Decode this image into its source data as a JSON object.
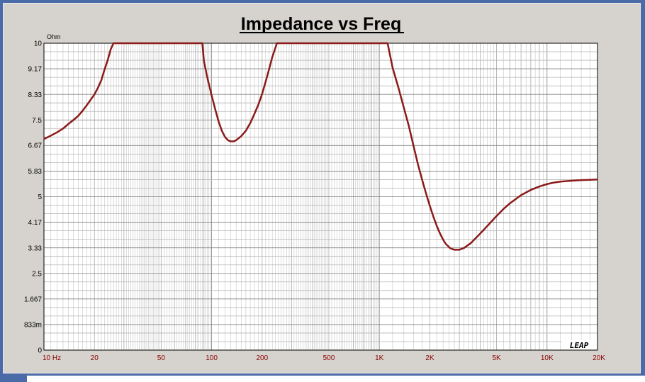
{
  "chart_data": {
    "type": "line",
    "title": "Impedance vs Freq",
    "ylabel": "Ohm",
    "xscale": "log",
    "xlim": [
      10,
      20000
    ],
    "ylim": [
      0,
      10
    ],
    "grid": true,
    "x_ticks": [
      {
        "value": 10,
        "label": "10  Hz"
      },
      {
        "value": 20,
        "label": "20"
      },
      {
        "value": 50,
        "label": "50"
      },
      {
        "value": 100,
        "label": "100"
      },
      {
        "value": 200,
        "label": "200"
      },
      {
        "value": 500,
        "label": "500"
      },
      {
        "value": 1000,
        "label": "1K"
      },
      {
        "value": 2000,
        "label": "2K"
      },
      {
        "value": 5000,
        "label": "5K"
      },
      {
        "value": 10000,
        "label": "10K"
      },
      {
        "value": 20000,
        "label": "20K"
      }
    ],
    "y_ticks": [
      {
        "value": 10,
        "label": "10"
      },
      {
        "value": 9.17,
        "label": "9.17"
      },
      {
        "value": 8.33,
        "label": "8.33"
      },
      {
        "value": 7.5,
        "label": "7.5"
      },
      {
        "value": 6.67,
        "label": "6.67"
      },
      {
        "value": 5.83,
        "label": "5.83"
      },
      {
        "value": 5,
        "label": "5"
      },
      {
        "value": 4.17,
        "label": "4.17"
      },
      {
        "value": 3.33,
        "label": "3.33"
      },
      {
        "value": 2.5,
        "label": "2.5"
      },
      {
        "value": 1.667,
        "label": "1.667"
      },
      {
        "value": 0.833,
        "label": "833m"
      },
      {
        "value": 0,
        "label": "0"
      }
    ],
    "series": [
      {
        "color": "#8b1a1a",
        "points": [
          [
            10,
            6.88
          ],
          [
            11,
            6.99
          ],
          [
            12,
            7.1
          ],
          [
            13,
            7.22
          ],
          [
            14,
            7.37
          ],
          [
            15,
            7.5
          ],
          [
            16,
            7.63
          ],
          [
            17,
            7.8
          ],
          [
            18,
            7.98
          ],
          [
            19,
            8.16
          ],
          [
            20,
            8.33
          ],
          [
            21,
            8.55
          ],
          [
            22,
            8.8
          ],
          [
            23,
            9.15
          ],
          [
            24,
            9.45
          ],
          [
            25,
            9.8
          ],
          [
            26,
            10
          ],
          [
            30,
            10
          ],
          [
            50,
            10
          ],
          [
            80,
            10
          ],
          [
            88,
            10
          ],
          [
            90,
            9.4
          ],
          [
            95,
            8.8
          ],
          [
            100,
            8.3
          ],
          [
            105,
            7.85
          ],
          [
            110,
            7.45
          ],
          [
            115,
            7.15
          ],
          [
            120,
            6.95
          ],
          [
            125,
            6.84
          ],
          [
            130,
            6.8
          ],
          [
            135,
            6.8
          ],
          [
            140,
            6.84
          ],
          [
            150,
            6.97
          ],
          [
            160,
            7.15
          ],
          [
            170,
            7.4
          ],
          [
            180,
            7.7
          ],
          [
            190,
            8.0
          ],
          [
            200,
            8.35
          ],
          [
            210,
            8.75
          ],
          [
            220,
            9.15
          ],
          [
            230,
            9.55
          ],
          [
            245,
            10
          ],
          [
            300,
            10
          ],
          [
            500,
            10
          ],
          [
            800,
            10
          ],
          [
            1000,
            10
          ],
          [
            1120,
            10
          ],
          [
            1200,
            9.2
          ],
          [
            1300,
            8.55
          ],
          [
            1400,
            7.9
          ],
          [
            1500,
            7.3
          ],
          [
            1600,
            6.65
          ],
          [
            1700,
            6.05
          ],
          [
            1800,
            5.55
          ],
          [
            1900,
            5.1
          ],
          [
            2000,
            4.7
          ],
          [
            2100,
            4.35
          ],
          [
            2200,
            4.05
          ],
          [
            2300,
            3.8
          ],
          [
            2400,
            3.6
          ],
          [
            2500,
            3.45
          ],
          [
            2650,
            3.32
          ],
          [
            2800,
            3.27
          ],
          [
            3000,
            3.27
          ],
          [
            3200,
            3.33
          ],
          [
            3500,
            3.48
          ],
          [
            4000,
            3.8
          ],
          [
            4500,
            4.1
          ],
          [
            5000,
            4.37
          ],
          [
            5500,
            4.6
          ],
          [
            6000,
            4.78
          ],
          [
            7000,
            5.05
          ],
          [
            8000,
            5.22
          ],
          [
            9000,
            5.33
          ],
          [
            10000,
            5.41
          ],
          [
            11000,
            5.46
          ],
          [
            12000,
            5.49
          ],
          [
            14000,
            5.52
          ],
          [
            16000,
            5.54
          ],
          [
            18000,
            5.55
          ],
          [
            20000,
            5.56
          ]
        ]
      }
    ]
  },
  "watermark": "LEAP"
}
